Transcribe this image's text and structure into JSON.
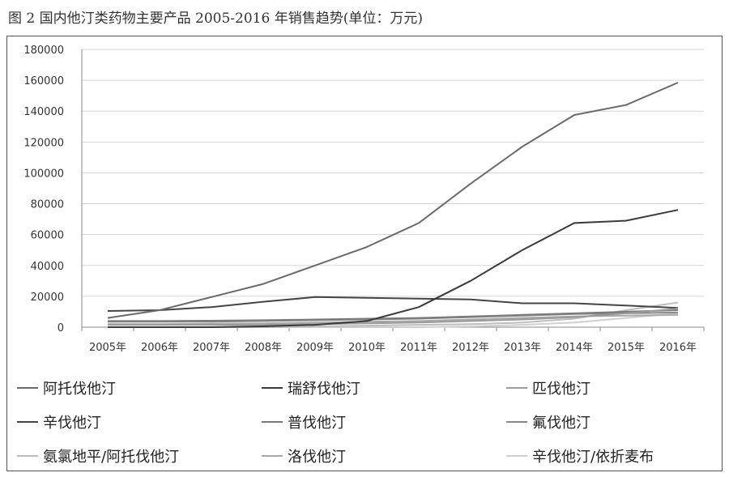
{
  "caption": "图 2 国内他汀类药物主要产品 2005-2016 年销售趋势(单位：万元)",
  "chart_data": {
    "type": "line",
    "title": "图 2 国内他汀类药物主要产品 2005-2016 年销售趋势(单位：万元)",
    "xlabel": "",
    "ylabel": "",
    "categories": [
      "2005年",
      "2006年",
      "2007年",
      "2008年",
      "2009年",
      "2010年",
      "2011年",
      "2012年",
      "2013年",
      "2014年",
      "2015年",
      "2016年"
    ],
    "y_ticks": [
      "0",
      "20000",
      "40000",
      "60000",
      "80000",
      "100000",
      "120000",
      "140000",
      "160000",
      "180000"
    ],
    "ylim": [
      0,
      180000
    ],
    "grid": "horizontal",
    "legend_placement": "bottom",
    "series": [
      {
        "name": "阿托伐他汀",
        "color": "#6a6a6a",
        "values": [
          6000,
          11000,
          19500,
          28000,
          40000,
          52000,
          67500,
          93000,
          117000,
          137500,
          144000,
          158500
        ]
      },
      {
        "name": "瑞舒伐他汀",
        "color": "#3a3a3a",
        "values": [
          0,
          0,
          0,
          500,
          1500,
          4000,
          13000,
          30000,
          50000,
          67500,
          69000,
          76000
        ]
      },
      {
        "name": "匹伐他汀",
        "color": "#9a9a9a",
        "values": [
          1500,
          1500,
          1500,
          1500,
          2000,
          2500,
          3000,
          4000,
          5000,
          6500,
          9000,
          12000
        ]
      },
      {
        "name": "辛伐他汀",
        "color": "#454545",
        "values": [
          10500,
          11000,
          13000,
          16500,
          19500,
          19000,
          18500,
          18000,
          15500,
          15500,
          14000,
          12500
        ]
      },
      {
        "name": "普伐他汀",
        "color": "#7a7a7a",
        "values": [
          4000,
          4000,
          4200,
          4500,
          5000,
          5500,
          6000,
          7000,
          8000,
          9000,
          10000,
          11000
        ]
      },
      {
        "name": "氟伐他汀",
        "color": "#888888",
        "values": [
          3500,
          3500,
          3500,
          4000,
          4500,
          5000,
          5500,
          6500,
          7500,
          8500,
          9000,
          9500
        ]
      },
      {
        "name": "氨氯地平/阿托伐他汀",
        "color": "#bdbdbd",
        "values": [
          0,
          0,
          0,
          0,
          500,
          1000,
          1500,
          2000,
          3000,
          5500,
          11000,
          16000
        ]
      },
      {
        "name": "洛伐他汀",
        "color": "#a8a8a8",
        "values": [
          2000,
          2000,
          2200,
          2500,
          3000,
          3500,
          4000,
          5000,
          6000,
          7000,
          7500,
          8000
        ]
      },
      {
        "name": "辛伐他汀/依折麦布",
        "color": "#cfcfcf",
        "values": [
          0,
          0,
          0,
          0,
          0,
          0,
          0,
          500,
          1500,
          3000,
          6000,
          9000
        ]
      }
    ]
  }
}
